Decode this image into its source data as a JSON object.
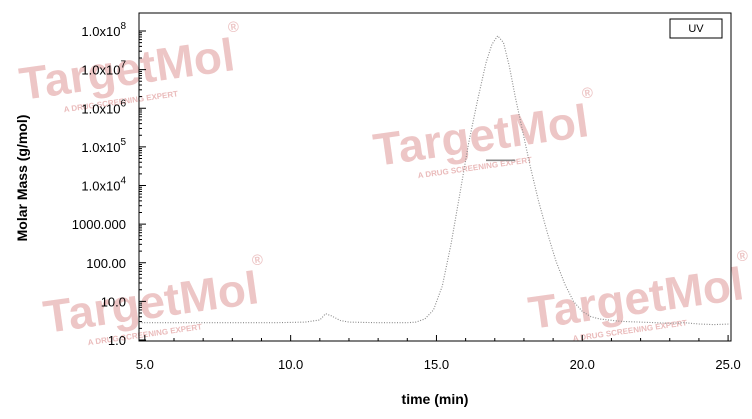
{
  "chart_data": {
    "type": "line",
    "title": "",
    "xlabel": "time (min)",
    "ylabel": "Molar Mass (g/mol)",
    "xlim": [
      4.8,
      25.1
    ],
    "ylim": [
      1.0,
      200000000.0
    ],
    "y_scale": "log",
    "x_ticks": [
      "5.0",
      "10.0",
      "15.0",
      "20.0",
      "25.0"
    ],
    "y_ticks": [
      {
        "value": 1.0,
        "base": "1.0",
        "exp": ""
      },
      {
        "value": 10.0,
        "base": "10.0",
        "exp": ""
      },
      {
        "value": 100.0,
        "base": "100.00",
        "exp": ""
      },
      {
        "value": 1000.0,
        "base": "1000.000",
        "exp": ""
      },
      {
        "value": 10000.0,
        "base": "1.0x10",
        "exp": "4"
      },
      {
        "value": 100000.0,
        "base": "1.0x10",
        "exp": "5"
      },
      {
        "value": 1000000.0,
        "base": "1.0x10",
        "exp": "6"
      },
      {
        "value": 10000000.0,
        "base": "1.0x10",
        "exp": "7"
      },
      {
        "value": 100000000.0,
        "base": "1.0x10",
        "exp": "8"
      }
    ],
    "legend": {
      "entries": [
        "UV"
      ],
      "position": "top-right"
    },
    "series": [
      {
        "name": "UV",
        "style": "dotted",
        "color": "#888888",
        "x": [
          4.8,
          6.0,
          8.0,
          9.5,
          10.5,
          11.0,
          11.2,
          11.4,
          11.7,
          12.0,
          13.0,
          14.0,
          14.3,
          14.6,
          14.9,
          15.2,
          15.5,
          15.8,
          16.1,
          16.4,
          16.7,
          16.9,
          17.1,
          17.3,
          17.5,
          17.7,
          17.9,
          18.2,
          18.5,
          18.8,
          19.1,
          19.4,
          19.7,
          20.0,
          20.3,
          20.6,
          20.9,
          21.2,
          21.5,
          22.0,
          22.5,
          23.0,
          23.5,
          24.0,
          24.5,
          25.1
        ],
        "y": [
          2.8,
          2.8,
          2.8,
          2.8,
          2.9,
          3.3,
          4.8,
          4.2,
          3.2,
          2.9,
          2.8,
          2.8,
          2.9,
          3.5,
          6.0,
          25,
          300,
          6000,
          120000,
          1500000,
          15000000,
          45000000,
          75000000,
          50000000,
          12000000,
          2000000,
          400000,
          35000,
          4000,
          600,
          110,
          28,
          10,
          5.5,
          4.0,
          3.5,
          3.3,
          3.1,
          3.0,
          2.9,
          2.8,
          2.7,
          2.8,
          2.6,
          2.5,
          2.6
        ]
      },
      {
        "name": "",
        "style": "solid",
        "color": "#888888",
        "x": [
          16.7,
          17.7
        ],
        "y": [
          45000,
          45000
        ]
      }
    ],
    "grid": false
  },
  "watermark": {
    "brand": "TargetMol",
    "tagline": "A DRUG SCREENING EXPERT",
    "mark": "®",
    "color": "#e8b4b4"
  }
}
